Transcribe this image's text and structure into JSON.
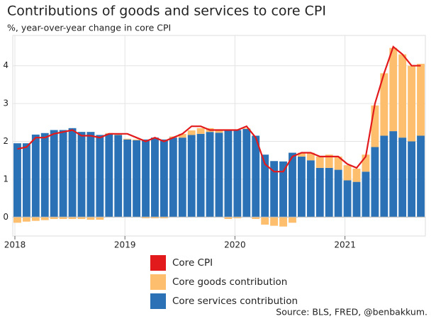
{
  "chart_data": {
    "type": "stacked_bar_line",
    "title": "Contributions of goods and services to core CPI",
    "subtitle": "%, year-over-year change in core CPI",
    "source": "Source: BLS, FRED, @benbakkum.",
    "categories": [
      "2018",
      null,
      null,
      null,
      null,
      null,
      null,
      null,
      null,
      null,
      null,
      null,
      "2019",
      null,
      null,
      null,
      null,
      null,
      null,
      null,
      null,
      null,
      null,
      null,
      "2020",
      null,
      null,
      null,
      null,
      null,
      null,
      null,
      null,
      null,
      null,
      null,
      "2021",
      null,
      null,
      null,
      null,
      null,
      null,
      null,
      null
    ],
    "series": [
      {
        "name": "Core services contribution",
        "color": "#2a72b5",
        "kind": "bar",
        "values": [
          1.95,
          1.95,
          2.18,
          2.22,
          2.3,
          2.3,
          2.35,
          2.25,
          2.25,
          2.17,
          2.2,
          2.17,
          2.05,
          2.03,
          2.05,
          2.1,
          2.05,
          2.1,
          2.1,
          2.17,
          2.2,
          2.25,
          2.23,
          2.3,
          2.3,
          2.33,
          2.15,
          1.65,
          1.48,
          1.47,
          1.7,
          1.6,
          1.5,
          1.3,
          1.3,
          1.25,
          0.97,
          0.93,
          1.2,
          1.85,
          2.15,
          2.27,
          2.1,
          2.0,
          2.15
        ]
      },
      {
        "name": "Core goods contribution",
        "color": "#fdbe6e",
        "kind": "bar",
        "values": [
          -0.15,
          -0.12,
          -0.1,
          -0.08,
          -0.05,
          -0.05,
          -0.05,
          -0.05,
          -0.07,
          -0.07,
          0.02,
          0.02,
          0.02,
          0.02,
          -0.03,
          -0.03,
          -0.03,
          0.03,
          0.1,
          0.12,
          0.15,
          0.1,
          0.07,
          -0.05,
          -0.03,
          0.02,
          -0.05,
          -0.2,
          -0.23,
          -0.25,
          -0.15,
          0.1,
          0.2,
          0.3,
          0.35,
          0.35,
          0.4,
          0.35,
          0.45,
          1.1,
          1.65,
          2.2,
          2.2,
          2.0,
          1.9
        ]
      },
      {
        "name": "Core CPI",
        "color": "#e31a1c",
        "kind": "line",
        "values": [
          1.8,
          1.85,
          2.1,
          2.1,
          2.2,
          2.25,
          2.3,
          2.15,
          2.15,
          2.1,
          2.2,
          2.2,
          2.2,
          2.1,
          2.0,
          2.1,
          2.0,
          2.1,
          2.2,
          2.4,
          2.4,
          2.3,
          2.3,
          2.3,
          2.3,
          2.4,
          2.1,
          1.4,
          1.2,
          1.2,
          1.6,
          1.7,
          1.7,
          1.6,
          1.6,
          1.6,
          1.4,
          1.3,
          1.6,
          3.0,
          3.8,
          4.5,
          4.3,
          4.0,
          4.0
        ]
      }
    ],
    "ylim": [
      -0.5,
      4.8
    ],
    "yticks": [
      0,
      1,
      2,
      3,
      4
    ],
    "grid": true
  }
}
